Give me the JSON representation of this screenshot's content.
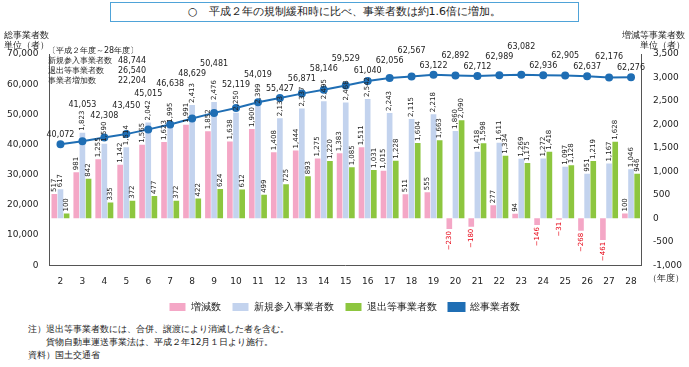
{
  "chart_data": {
    "type": "bar",
    "title": "○　平成２年の規制緩和時に比べ、事業者数は約1.6倍に増加。",
    "y_label": [
      "総事業者数",
      "単位（者）"
    ],
    "y2_label": [
      "増減等事業者数",
      "単位（者）"
    ],
    "x_label": "（年度）",
    "inset": {
      "heading": "〔平成２年度～28年度〕",
      "rows": [
        [
          "新規参入事業者数",
          "48,744"
        ],
        [
          "退出等事業者数",
          "26,540"
        ],
        [
          "事業者増加数",
          "22,204"
        ]
      ]
    },
    "notes": [
      "注）退出等事業者数には、合併、譲渡により消滅した者を含む。",
      "貨物自動車運送事業法は、平成２年12月１日より施行。"
    ],
    "source": "資料）国土交通省",
    "categories": [
      "2",
      "3",
      "4",
      "5",
      "6",
      "7",
      "8",
      "9",
      "10",
      "11",
      "12",
      "13",
      "14",
      "15",
      "16",
      "17",
      "18",
      "19",
      "20",
      "21",
      "22",
      "23",
      "24",
      "25",
      "26",
      "27",
      "28"
    ],
    "series": [
      {
        "name": "増減数",
        "color": "#f4a7c6",
        "axis": "y2",
        "values": [
          517,
          981,
          1255,
          1142,
          1565,
          1623,
          1991,
          1852,
          1638,
          1900,
          1408,
          1444,
          1275,
          1383,
          1511,
          1015,
          511,
          555,
          -230,
          -180,
          277,
          94,
          -146,
          -31,
          -268,
          -461,
          100
        ],
        "value_labels": [
          "517",
          "981",
          "1,255",
          "1,142",
          "1,565",
          "1,623",
          "1,991",
          "1,852",
          "1,638",
          "1,900",
          "1,408",
          "1,444",
          "1,275",
          "1,383",
          "1,511",
          "1,015",
          "511",
          "555",
          "−230",
          "−180",
          "277",
          "94",
          "−146",
          "−31",
          "−268",
          "−461",
          "100"
        ]
      },
      {
        "name": "新規参入事業者数",
        "color": "#c3d3ee",
        "axis": "y2",
        "values": [
          617,
          1823,
          1590,
          1514,
          2042,
          1995,
          2413,
          2476,
          2250,
          2399,
          2133,
          2337,
          2495,
          2468,
          2542,
          2243,
          2115,
          2218,
          1860,
          1418,
          1611,
          1269,
          1272,
          1097,
          951,
          1167,
          1046
        ],
        "value_labels": [
          "617",
          "1,823",
          "1,590",
          "1,514",
          "2,042",
          "1,995",
          "2,413",
          "2,476",
          "2,250",
          "2,399",
          "2,133",
          "2,337",
          "2,495",
          "2,468",
          "2,542",
          "2,243",
          "2,115",
          "2,218",
          "1,860",
          "1,418",
          "1,611",
          "1,269",
          "1,272",
          "1,097",
          "951",
          "1,167",
          "1,046"
        ]
      },
      {
        "name": "退出等事業者数",
        "color": "#8dc63f",
        "axis": "y2",
        "values": [
          100,
          842,
          335,
          372,
          477,
          372,
          422,
          624,
          612,
          499,
          725,
          893,
          1220,
          1085,
          1031,
          1228,
          1604,
          1663,
          2090,
          1598,
          1334,
          1175,
          1418,
          1128,
          1219,
          1628,
          946
        ],
        "value_labels": [
          "100",
          "842",
          "335",
          "372",
          "477",
          "372",
          "422",
          "624",
          "612",
          "499",
          "725",
          "893",
          "1,220",
          "1,085",
          "1,031",
          "1,228",
          "1,604",
          "1,663",
          "2,090",
          "1,598",
          "1,334",
          "1,175",
          "1,418",
          "1,128",
          "1,219",
          "1,628",
          "946"
        ]
      },
      {
        "name": "総事業者数",
        "color": "#1f6eb4",
        "type": "line",
        "marker": "circle",
        "values": [
          40072,
          41053,
          42308,
          43450,
          45015,
          46638,
          48629,
          50481,
          52119,
          54019,
          55427,
          56871,
          58146,
          59529,
          61040,
          62056,
          62567,
          63122,
          62892,
          62712,
          62989,
          63082,
          62936,
          62905,
          62637,
          62176,
          62276
        ],
        "value_labels": [
          "40,072",
          "41,053",
          "42,308",
          "43,450",
          "45,015",
          "46,638",
          "48,629",
          "50,481",
          "52,119",
          "54,019",
          "55,427",
          "56,871",
          "58,146",
          "59,529",
          "61,040",
          "62,056",
          "62,567",
          "63,122",
          "62,892",
          "62,712",
          "62,989",
          "63,082",
          "62,936",
          "62,905",
          "62,637",
          "62,176",
          "62,276"
        ]
      }
    ],
    "ylim": [
      0,
      70000
    ],
    "yticks": [
      0,
      {
        "value": 10000,
        "label": "10,000"
      },
      {
        "value": 20000,
        "label": "20,000"
      },
      {
        "value": 30000,
        "label": "30,000"
      },
      {
        "value": 40000,
        "label": "40,000"
      },
      {
        "value": 50000,
        "label": "50,000"
      },
      {
        "value": 60000,
        "label": "60,000"
      },
      {
        "value": 70000,
        "label": "70,000"
      }
    ],
    "y2lim": [
      -1000,
      3500
    ],
    "y2ticks": [
      {
        "value": -1000,
        "label": "-1,000"
      },
      -500,
      0,
      500,
      {
        "value": 1000,
        "label": "1,000"
      },
      {
        "value": 1500,
        "label": "1,500"
      },
      {
        "value": 2000,
        "label": "2,000"
      },
      {
        "value": 2500,
        "label": "2,500"
      },
      {
        "value": 3000,
        "label": "3,000"
      },
      {
        "value": 3500,
        "label": "3,500"
      }
    ],
    "grid": false,
    "legend": "bottom",
    "data_labels": true
  }
}
